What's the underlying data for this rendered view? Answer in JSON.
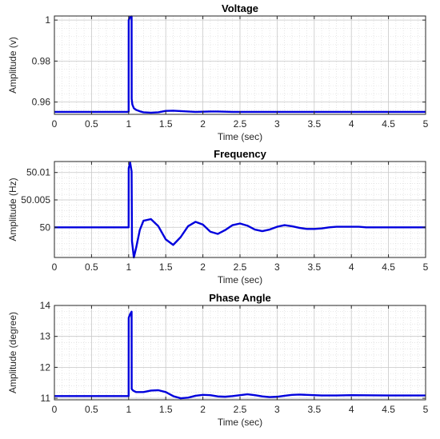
{
  "chart_data": [
    {
      "type": "line",
      "title": "Voltage",
      "xlabel": "Time (sec)",
      "ylabel": "Amplitude (v)",
      "xlim": [
        0,
        5
      ],
      "ylim": [
        0.954,
        1.002
      ],
      "xticks": [
        0,
        0.5,
        1,
        1.5,
        2,
        2.5,
        3,
        3.5,
        4,
        4.5,
        5
      ],
      "xtick_labels": [
        "0",
        "0.5",
        "1",
        "1.5",
        "2",
        "2.5",
        "3",
        "3.5",
        "4",
        "4.5",
        "5"
      ],
      "yticks": [
        0.96,
        0.98,
        1
      ],
      "ytick_labels": [
        "0.96",
        "0.98",
        "1"
      ],
      "grid": true,
      "color": "#0000dd",
      "series": [
        {
          "x": [
            0,
            1.0,
            1.001,
            1.02,
            1.04,
            1.041,
            1.05,
            1.07,
            1.1,
            1.15,
            1.2,
            1.3,
            1.4,
            1.5,
            1.6,
            1.7,
            1.8,
            1.9,
            2.0,
            2.1,
            2.2,
            2.3,
            2.4,
            2.6,
            3.0,
            3.5,
            4.0,
            5.0
          ],
          "values": [
            0.9552,
            0.9552,
            1.0,
            1.0015,
            1.0018,
            0.9615,
            0.9588,
            0.957,
            0.9562,
            0.9555,
            0.955,
            0.9548,
            0.955,
            0.9557,
            0.9558,
            0.9556,
            0.9554,
            0.9552,
            0.9553,
            0.9554,
            0.9554,
            0.9553,
            0.9552,
            0.9552,
            0.9552,
            0.9552,
            0.9552,
            0.9552
          ]
        }
      ]
    },
    {
      "type": "line",
      "title": "Frequency",
      "xlabel": "Time (sec)",
      "ylabel": "Amplitude (Hz)",
      "xlim": [
        0,
        5
      ],
      "ylim": [
        49.9945,
        50.012
      ],
      "xticks": [
        0,
        0.5,
        1,
        1.5,
        2,
        2.5,
        3,
        3.5,
        4,
        4.5,
        5
      ],
      "xtick_labels": [
        "0",
        "0.5",
        "1",
        "1.5",
        "2",
        "2.5",
        "3",
        "3.5",
        "4",
        "4.5",
        "5"
      ],
      "yticks": [
        50,
        50.005,
        50.01
      ],
      "ytick_labels": [
        "50",
        "50.005",
        "50.01"
      ],
      "grid": true,
      "color": "#0000dd",
      "series": [
        {
          "x": [
            0,
            1.0,
            1.001,
            1.02,
            1.04,
            1.045,
            1.07,
            1.1,
            1.15,
            1.2,
            1.3,
            1.4,
            1.5,
            1.6,
            1.7,
            1.8,
            1.9,
            2.0,
            2.1,
            2.2,
            2.3,
            2.4,
            2.5,
            2.6,
            2.7,
            2.8,
            2.9,
            3.0,
            3.1,
            3.2,
            3.3,
            3.4,
            3.5,
            3.6,
            3.7,
            3.8,
            3.9,
            4.0,
            4.1,
            4.2,
            4.3,
            4.5,
            4.7,
            5.0
          ],
          "values": [
            50.0,
            50.0,
            50.0108,
            50.0118,
            50.0102,
            49.9975,
            49.9945,
            49.9962,
            49.9995,
            50.0012,
            50.0015,
            50.0002,
            49.9978,
            49.9968,
            49.9982,
            50.0002,
            50.001,
            50.0005,
            49.9992,
            49.9988,
            49.9995,
            50.0004,
            50.0007,
            50.0003,
            49.9996,
            49.9993,
            49.9996,
            50.0001,
            50.0004,
            50.0002,
            49.9999,
            49.9997,
            49.9997,
            49.9998,
            50.0,
            50.0001,
            50.0001,
            50.0001,
            50.0001,
            50.0,
            50.0,
            50.0,
            50.0,
            50.0
          ]
        }
      ]
    },
    {
      "type": "line",
      "title": "Phase Angle",
      "xlabel": "Time (sec)",
      "ylabel": "Amplitude (degree)",
      "xlim": [
        0,
        5
      ],
      "ylim": [
        10.95,
        14
      ],
      "xticks": [
        0,
        0.5,
        1,
        1.5,
        2,
        2.5,
        3,
        3.5,
        4,
        4.5,
        5
      ],
      "xtick_labels": [
        "0",
        "0.5",
        "1",
        "1.5",
        "2",
        "2.5",
        "3",
        "3.5",
        "4",
        "4.5",
        "5"
      ],
      "yticks": [
        11,
        12,
        13,
        14
      ],
      "ytick_labels": [
        "11",
        "12",
        "13",
        "14"
      ],
      "grid": true,
      "color": "#0000dd",
      "series": [
        {
          "x": [
            0,
            1.0,
            1.001,
            1.02,
            1.04,
            1.041,
            1.06,
            1.1,
            1.2,
            1.3,
            1.4,
            1.5,
            1.6,
            1.7,
            1.8,
            1.9,
            2.0,
            2.1,
            2.2,
            2.3,
            2.4,
            2.5,
            2.6,
            2.7,
            2.8,
            2.9,
            3.0,
            3.1,
            3.2,
            3.3,
            3.4,
            3.5,
            3.6,
            3.8,
            4.0,
            4.5,
            5.0
          ],
          "values": [
            11.07,
            11.07,
            13.6,
            13.72,
            13.8,
            11.3,
            11.25,
            11.2,
            11.2,
            11.25,
            11.26,
            11.2,
            11.07,
            11.0,
            11.02,
            11.08,
            11.11,
            11.1,
            11.06,
            11.05,
            11.07,
            11.1,
            11.13,
            11.1,
            11.06,
            11.04,
            11.05,
            11.08,
            11.11,
            11.12,
            11.11,
            11.1,
            11.09,
            11.09,
            11.1,
            11.09,
            11.09
          ]
        }
      ]
    }
  ]
}
